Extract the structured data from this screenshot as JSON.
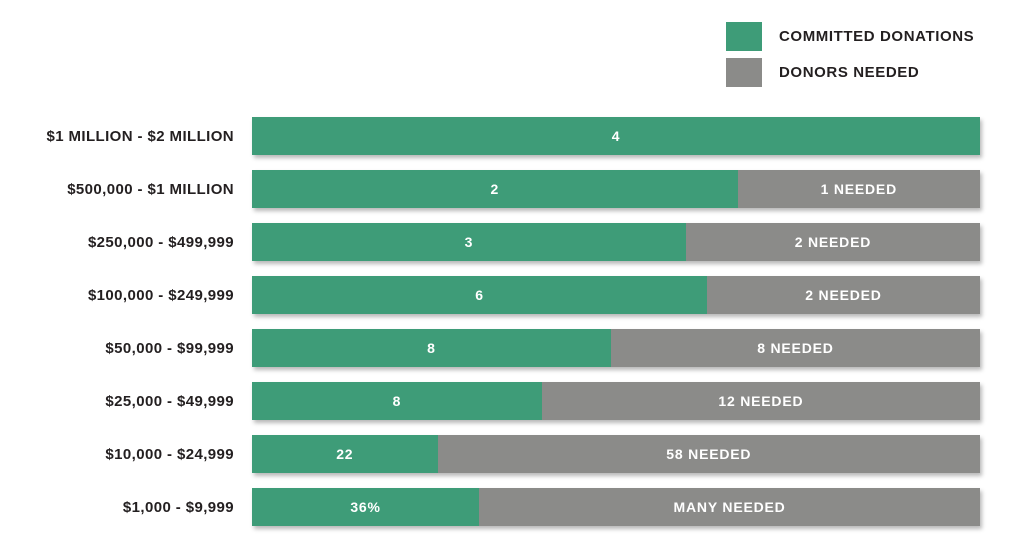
{
  "legend": {
    "items": [
      {
        "label": "COMMITTED DONATIONS",
        "color": "#3e9c78"
      },
      {
        "label": "DONORS NEEDED",
        "color": "#8b8b89"
      }
    ]
  },
  "chart_data": {
    "type": "bar",
    "orientation": "horizontal",
    "stacked": true,
    "grid": false,
    "legend_position": "top-right",
    "colors": {
      "committed": "#3e9c78",
      "needed": "#8b8b89"
    },
    "categories": [
      "$1 MILLION - $2 MILLION",
      "$500,000 - $1 MILLION",
      "$250,000 - $499,999",
      "$100,000 - $249,999",
      "$50,000 - $99,999",
      "$25,000 - $49,999",
      "$10,000 - $24,999",
      "$1,000 - $9,999"
    ],
    "series": [
      {
        "name": "COMMITTED DONATIONS",
        "values": [
          4,
          2,
          3,
          6,
          8,
          8,
          22,
          "36%"
        ]
      },
      {
        "name": "DONORS NEEDED",
        "values": [
          0,
          1,
          2,
          2,
          8,
          12,
          58,
          "MANY"
        ]
      }
    ],
    "rows": [
      {
        "category": "$1 MILLION - $2 MILLION",
        "committed_label": "4",
        "committed_pct": 100,
        "needed_label": ""
      },
      {
        "category": "$500,000 - $1 MILLION",
        "committed_label": "2",
        "committed_pct": 66.7,
        "needed_label": "1 NEEDED"
      },
      {
        "category": "$250,000 - $499,999",
        "committed_label": "3",
        "committed_pct": 59.6,
        "needed_label": "2 NEEDED"
      },
      {
        "category": "$100,000 - $249,999",
        "committed_label": "6",
        "committed_pct": 62.5,
        "needed_label": "2 NEEDED"
      },
      {
        "category": "$50,000 - $99,999",
        "committed_label": "8",
        "committed_pct": 49.3,
        "needed_label": "8 NEEDED"
      },
      {
        "category": "$25,000 - $49,999",
        "committed_label": "8",
        "committed_pct": 39.8,
        "needed_label": "12 NEEDED"
      },
      {
        "category": "$10,000 - $24,999",
        "committed_label": "22",
        "committed_pct": 25.5,
        "needed_label": "58 NEEDED"
      },
      {
        "category": "$1,000 - $9,999",
        "committed_label": "36%",
        "committed_pct": 31.2,
        "needed_label": "MANY NEEDED"
      }
    ]
  }
}
